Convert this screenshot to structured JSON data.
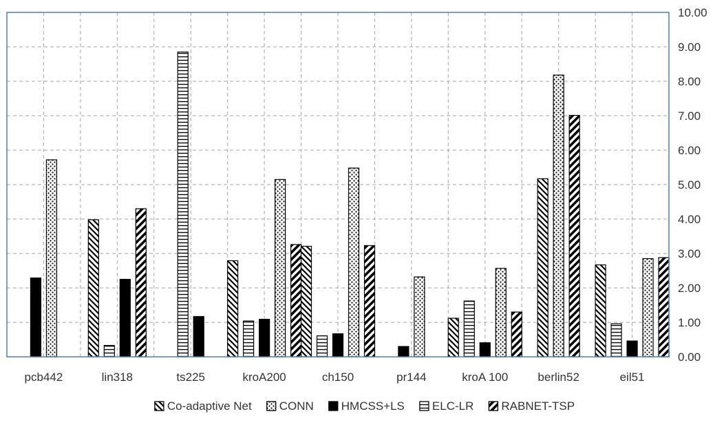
{
  "chart_data": {
    "type": "bar",
    "title": "",
    "xlabel": "",
    "ylabel": "",
    "categories": [
      "pcb442",
      "lin318",
      "ts225",
      "kroA200",
      "ch150",
      "pr144",
      "kroA 100",
      "berlin52",
      "eil51"
    ],
    "ylim": [
      0,
      10
    ],
    "y_ticks": [
      "0.00",
      "1.00",
      "2.00",
      "3.00",
      "4.00",
      "5.00",
      "6.00",
      "7.00",
      "8.00",
      "9.00",
      "10.00"
    ],
    "y_axis_side": "right",
    "grid": "dashed",
    "legend_position": "bottom",
    "series": [
      {
        "name": "Co-adaptive Net",
        "pattern": "diag-light",
        "values": [
          null,
          3.98,
          null,
          2.79,
          3.21,
          null,
          1.12,
          5.17,
          2.67
        ]
      },
      {
        "name": "CONN",
        "pattern": "dots",
        "values": [
          5.72,
          null,
          null,
          5.15,
          5.48,
          2.32,
          2.57,
          8.18,
          2.85
        ]
      },
      {
        "name": "HMCSS+LS",
        "pattern": "solid",
        "values": [
          2.29,
          2.25,
          1.17,
          1.09,
          0.67,
          0.3,
          0.41,
          null,
          0.46
        ]
      },
      {
        "name": "ELC-LR",
        "pattern": "horizontal",
        "values": [
          null,
          0.33,
          8.85,
          1.04,
          0.61,
          null,
          1.62,
          null,
          0.96
        ]
      },
      {
        "name": "RABNET-TSP",
        "pattern": "diag-heavy",
        "values": [
          null,
          4.3,
          null,
          3.26,
          3.23,
          null,
          1.3,
          7.01,
          2.88
        ]
      }
    ],
    "bar_order": [
      [
        "HMCSS+LS",
        "CONN"
      ],
      [
        "Co-adaptive Net",
        "ELC-LR",
        "HMCSS+LS",
        "RABNET-TSP"
      ],
      [
        "ELC-LR",
        "HMCSS+LS"
      ],
      [
        "Co-adaptive Net",
        "ELC-LR",
        "HMCSS+LS",
        "CONN",
        "RABNET-TSP"
      ],
      [
        "Co-adaptive Net",
        "ELC-LR",
        "HMCSS+LS",
        "CONN",
        "RABNET-TSP"
      ],
      [
        "HMCSS+LS",
        "CONN"
      ],
      [
        "Co-adaptive Net",
        "ELC-LR",
        "HMCSS+LS",
        "CONN",
        "RABNET-TSP"
      ],
      [
        "Co-adaptive Net",
        "CONN",
        "RABNET-TSP"
      ],
      [
        "Co-adaptive Net",
        "ELC-LR",
        "HMCSS+LS",
        "CONN",
        "RABNET-TSP"
      ]
    ],
    "legend_order": [
      "Co-adaptive Net",
      "CONN",
      "HMCSS+LS",
      "ELC-LR",
      "RABNET-TSP"
    ],
    "colors": {
      "frame": "#4a7ebb",
      "grid": "#a6a6a6",
      "bar_edge": "#000000",
      "fill": "#000000"
    }
  }
}
